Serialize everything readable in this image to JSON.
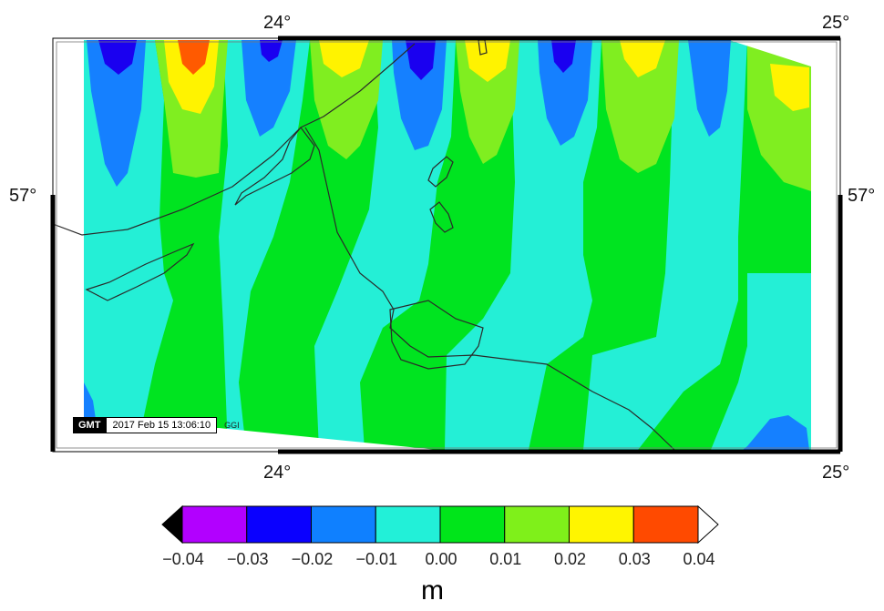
{
  "map": {
    "lon_labels": [
      "24°",
      "25°"
    ],
    "lat_labels": [
      "57°"
    ],
    "stamp": {
      "logo": "GMT",
      "timestamp": "2017 Feb 15 13:06:10",
      "tag": "GGI"
    }
  },
  "colorbar": {
    "unit": "m",
    "ticks": [
      "−0.04",
      "−0.03",
      "−0.02",
      "−0.01",
      "0.00",
      "0.01",
      "0.02",
      "0.03",
      "0.04"
    ],
    "colors": [
      "#b200ff",
      "#0a00ff",
      "#0f80ff",
      "#22f0d8",
      "#00e51a",
      "#7ff01a",
      "#fff500",
      "#ff4a00"
    ],
    "below_color": "#000000",
    "above_color": "#ffffff"
  },
  "palette": {
    "deep_blue": "#1a00f0",
    "mid_blue": "#1580ff",
    "cyan": "#24efd6",
    "green": "#00e420",
    "lime": "#80ee20",
    "yellow": "#fff300",
    "orange": "#ff5a00",
    "coast": "#2a2a2a"
  }
}
